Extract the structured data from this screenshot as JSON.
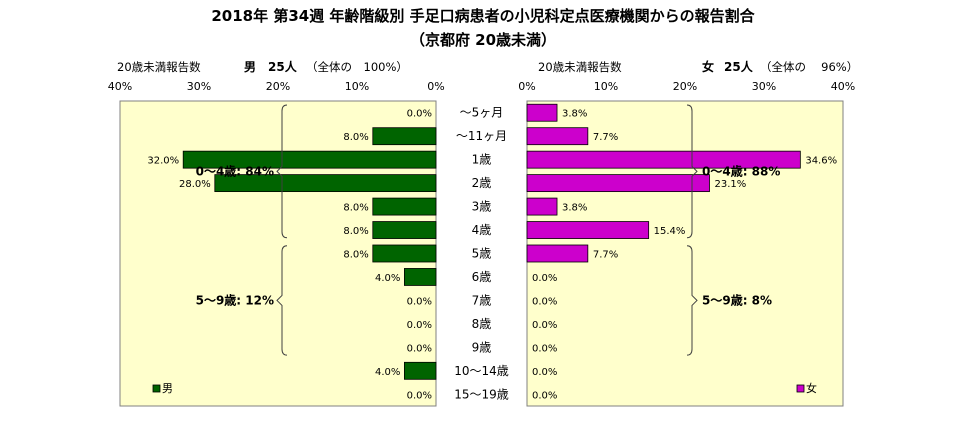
{
  "title": "2018年 第34週 年齢階級別 手足口病患者の小児科定点医療機関からの報告割合",
  "subtitle": "（京都府 20歳未満）",
  "left_panel": {
    "axis_label": "20歳未満報告数",
    "gender": "男",
    "count_text": "25人",
    "share_text": "（全体の　100%）",
    "legend": "男",
    "color": "#006400",
    "groups": [
      {
        "label": "0～4歳: 84%",
        "from": 0,
        "to": 5
      },
      {
        "label": "5～9歳: 12%",
        "from": 6,
        "to": 10
      }
    ]
  },
  "right_panel": {
    "axis_label": "20歳未満報告数",
    "gender": "女",
    "count_text": "25人",
    "share_text": "（全体の　 96%）",
    "legend": "女",
    "color": "#CC00CC",
    "groups": [
      {
        "label": "0～4歳: 88%",
        "from": 0,
        "to": 5
      },
      {
        "label": "5～9歳: 8%",
        "from": 6,
        "to": 10
      }
    ]
  },
  "background_color": "#FFFFCC",
  "chart_data": {
    "type": "bar",
    "orientation": "horizontal",
    "categories": [
      "～5ヶ月",
      "～11ヶ月",
      "1歳",
      "2歳",
      "3歳",
      "4歳",
      "5歳",
      "6歳",
      "7歳",
      "8歳",
      "9歳",
      "10～14歳",
      "15～19歳"
    ],
    "series": [
      {
        "name": "男",
        "values": [
          0,
          8,
          32,
          28,
          8,
          8,
          8,
          4,
          0,
          0,
          0,
          4,
          0
        ],
        "labels": [
          "0.0%",
          "8.0%",
          "32.0%",
          "28.0%",
          "8.0%",
          "8.0%",
          "8.0%",
          "4.0%",
          "0.0%",
          "0.0%",
          "0.0%",
          "4.0%",
          "0.0%"
        ]
      },
      {
        "name": "女",
        "values": [
          3.8,
          7.7,
          34.6,
          23.1,
          3.8,
          15.4,
          7.7,
          0,
          0,
          0,
          0,
          0,
          0
        ],
        "labels": [
          "3.8%",
          "7.7%",
          "34.6%",
          "23.1%",
          "3.8%",
          "15.4%",
          "7.7%",
          "0.0%",
          "0.0%",
          "0.0%",
          "0.0%",
          "0.0%",
          "0.0%"
        ]
      }
    ],
    "xlim": [
      0,
      40
    ],
    "xticks": [
      "0%",
      "10%",
      "20%",
      "30%",
      "40%"
    ],
    "legend_position": "bottom"
  }
}
